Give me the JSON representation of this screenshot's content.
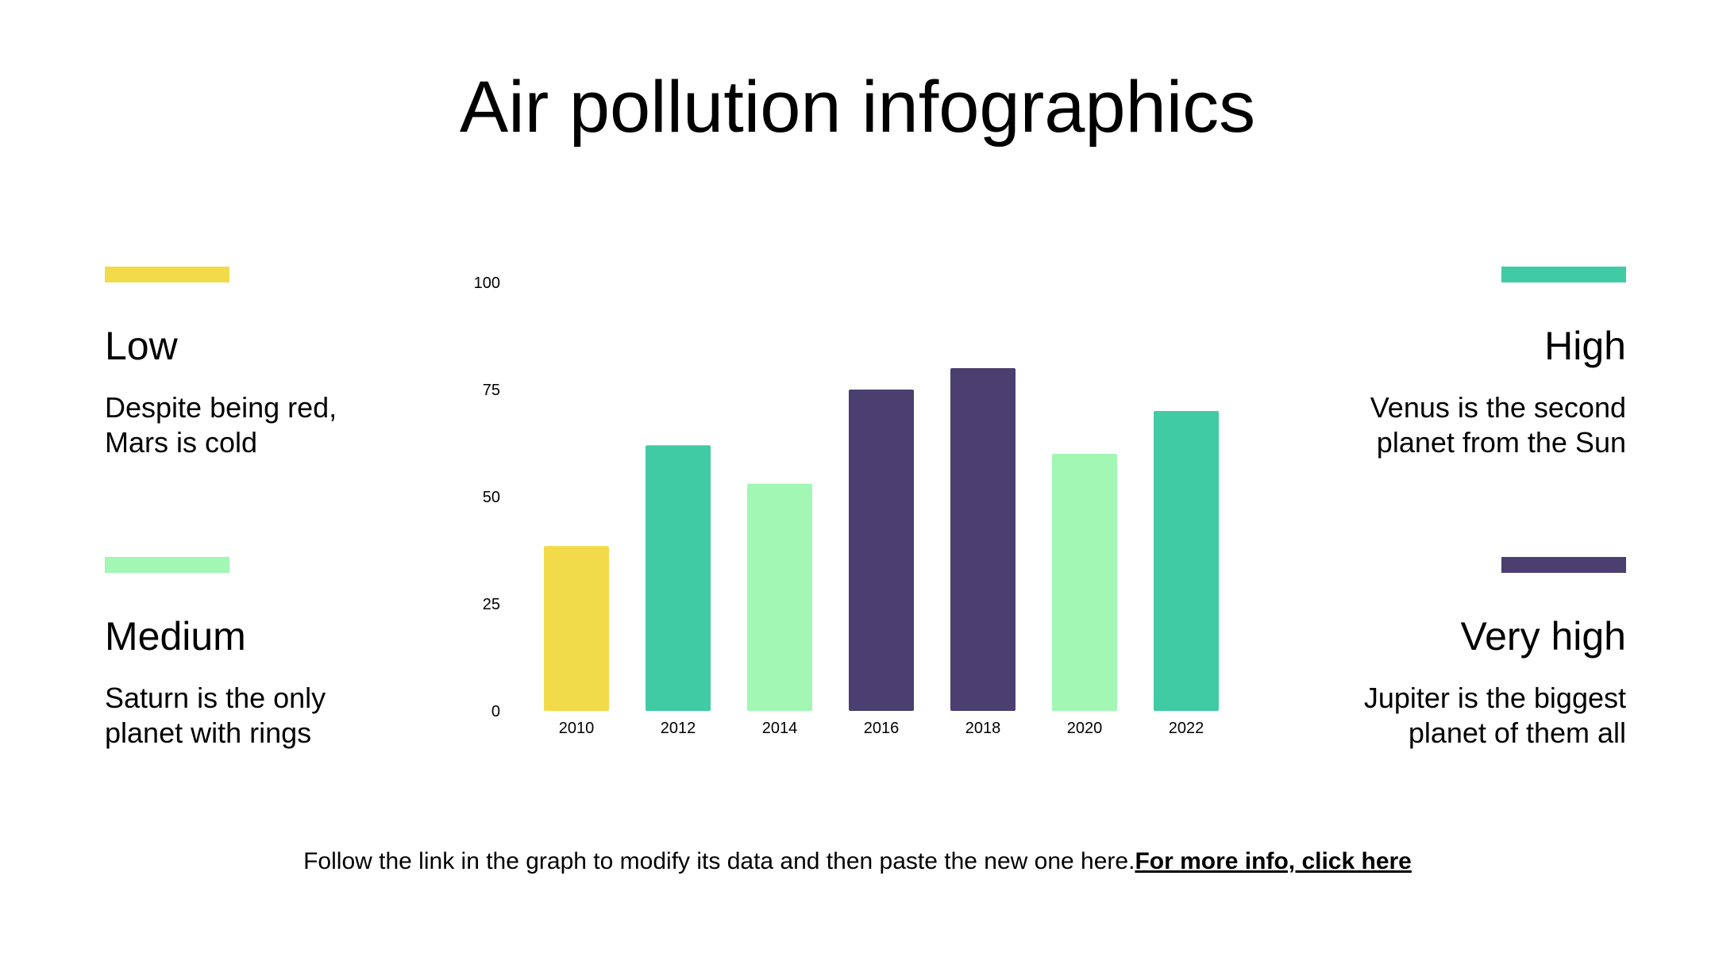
{
  "title": "Air pollution infographics",
  "legend": [
    {
      "label": "Low",
      "description_line1": "Despite being red,",
      "description_line2": "Mars is cold",
      "color": "#f2db4b"
    },
    {
      "label": "Medium",
      "description_line1": "Saturn is the only",
      "description_line2": "planet with rings",
      "color": "#a1f7b3"
    },
    {
      "label": "High",
      "description_line1": "Venus is the second",
      "description_line2": "planet from the Sun",
      "color": "#41cba4"
    },
    {
      "label": "Very high",
      "description_line1": "Jupiter is the biggest",
      "description_line2": "planet of them all",
      "color": "#4a3f6e"
    }
  ],
  "chart_data": {
    "type": "bar",
    "categories": [
      "2010",
      "2012",
      "2014",
      "2016",
      "2018",
      "2020",
      "2022"
    ],
    "values": [
      38.5,
      62,
      53,
      75,
      80,
      60,
      70
    ],
    "colors": [
      "#f2db4b",
      "#41cba4",
      "#a1f7b3",
      "#4a3f6e",
      "#4a3f6e",
      "#a1f7b3",
      "#41cba4"
    ],
    "yticks": [
      "0",
      "25",
      "50",
      "75",
      "100"
    ],
    "ylim": [
      0,
      100
    ],
    "title": "",
    "xlabel": "",
    "ylabel": "",
    "grid": false
  },
  "footer": {
    "text": "Follow the link in the graph to modify its data and then paste the new one here.",
    "link_label": "For more info, click here"
  }
}
